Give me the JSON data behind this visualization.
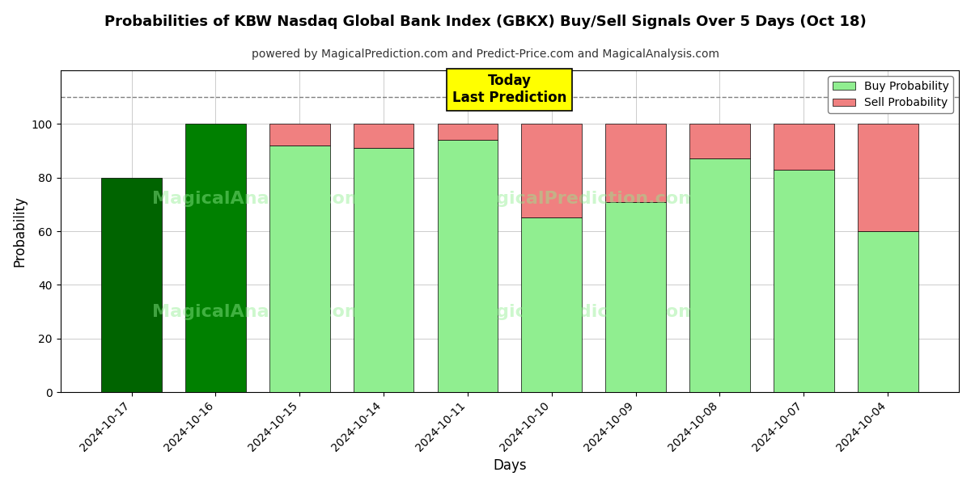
{
  "title": "Probabilities of KBW Nasdaq Global Bank Index (GBKX) Buy/Sell Signals Over 5 Days (Oct 18)",
  "subtitle": "powered by MagicalPrediction.com and Predict-Price.com and MagicalAnalysis.com",
  "xlabel": "Days",
  "ylabel": "Probability",
  "categories": [
    "2024-10-17",
    "2024-10-16",
    "2024-10-15",
    "2024-10-14",
    "2024-10-11",
    "2024-10-10",
    "2024-10-09",
    "2024-10-08",
    "2024-10-07",
    "2024-10-04"
  ],
  "buy_values": [
    80,
    100,
    92,
    91,
    94,
    65,
    71,
    87,
    83,
    60
  ],
  "sell_values": [
    0,
    0,
    8,
    9,
    6,
    35,
    29,
    13,
    17,
    40
  ],
  "buy_color_first": "#006400",
  "buy_color_second": "#008000",
  "buy_color_rest": "#90EE90",
  "sell_color": "#F08080",
  "ylim": [
    0,
    120
  ],
  "yticks": [
    0,
    20,
    40,
    60,
    80,
    100
  ],
  "dashed_line_y": 110,
  "today_label": "Today\nLast Prediction",
  "today_box_color": "#FFFF00",
  "legend_buy_color": "#90EE90",
  "legend_sell_color": "#F08080",
  "background_color": "#ffffff",
  "grid_color": "#cccccc"
}
